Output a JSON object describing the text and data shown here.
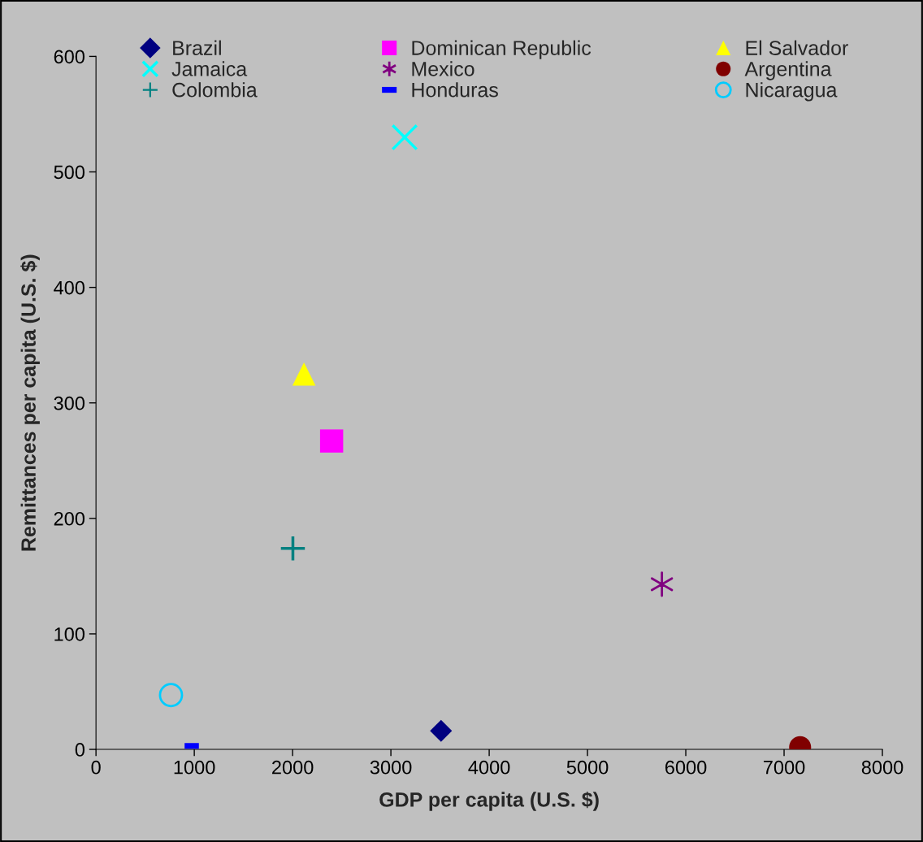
{
  "chart_data": {
    "type": "scatter",
    "xlabel": "GDP per capita (U.S. $)",
    "ylabel": "Remittances per capita (U.S. $)",
    "xlim": [
      0,
      8000
    ],
    "xticks": [
      0,
      1000,
      2000,
      3000,
      4000,
      5000,
      6000,
      7000,
      8000
    ],
    "ylim": [
      0,
      600
    ],
    "yticks": [
      0,
      100,
      200,
      300,
      400,
      500,
      600
    ],
    "grid": false,
    "legend": "top",
    "series": [
      {
        "name": "Brazil",
        "color": "#000080",
        "marker": "diamond",
        "x": [
          3510
        ],
        "values": [
          16
        ]
      },
      {
        "name": "Dominican Republic",
        "color": "#ff00ff",
        "marker": "square",
        "x": [
          2397
        ],
        "values": [
          267
        ]
      },
      {
        "name": "El Salvador",
        "color": "#ffff00",
        "marker": "triangle",
        "x": [
          2116
        ],
        "values": [
          325
        ]
      },
      {
        "name": "Jamaica",
        "color": "#00ffff",
        "marker": "cross",
        "x": [
          3140
        ],
        "values": [
          530
        ]
      },
      {
        "name": "Mexico",
        "color": "#800080",
        "x": [
          5757
        ],
        "values": [
          143
        ]
      },
      {
        "name": "Argentina",
        "color": "#800000",
        "marker": "circle",
        "x": [
          7163
        ],
        "values": [
          2
        ]
      },
      {
        "name": "Colombia",
        "color": "#008080",
        "x": [
          2003
        ],
        "values": [
          174
        ]
      },
      {
        "name": "Honduras",
        "color": "#0000ff",
        "x": [
          974
        ],
        "values": [
          3
        ]
      },
      {
        "name": "Nicaragua",
        "color": "#00ccff",
        "marker": "circle",
        "x": [
          763
        ],
        "values": [
          47
        ]
      }
    ]
  }
}
